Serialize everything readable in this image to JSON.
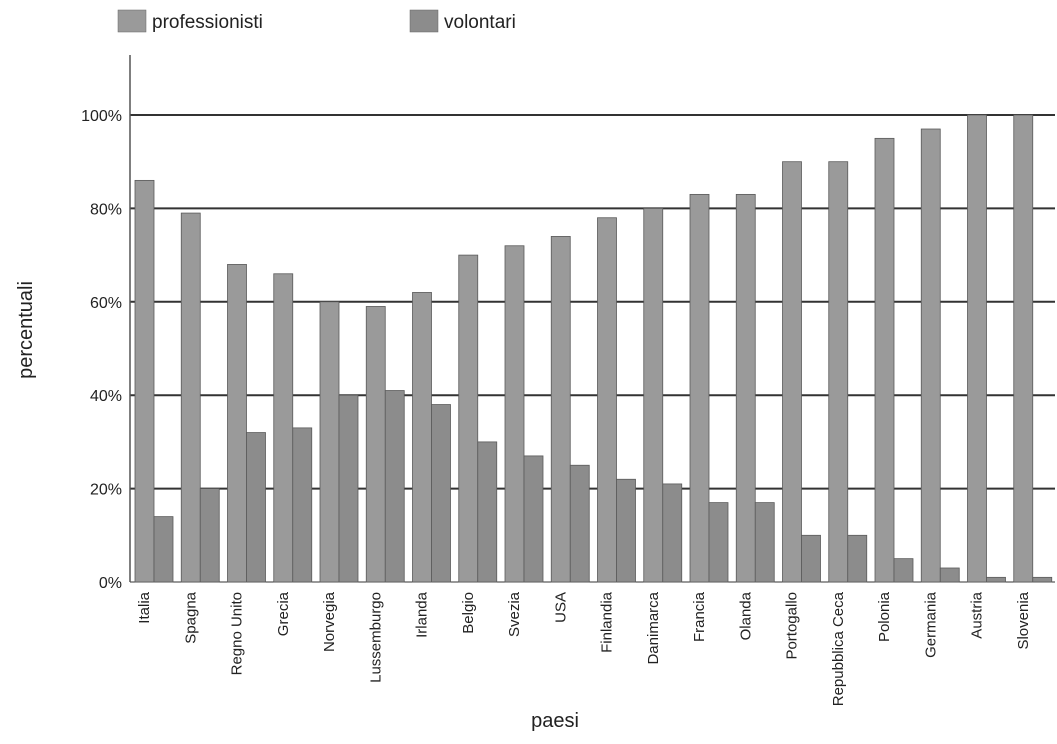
{
  "chart_data": {
    "type": "bar",
    "categories": [
      "Italia",
      "Spagna",
      "Regno Unito",
      "Grecia",
      "Norvegia",
      "Lussemburgo",
      "Irlanda",
      "Belgio",
      "Svezia",
      "USA",
      "Finlandia",
      "Danimarca",
      "Francia",
      "Olanda",
      "Portogallo",
      "Repubblica Ceca",
      "Polonia",
      "Germania",
      "Austria",
      "Slovenia"
    ],
    "series": [
      {
        "name": "professionisti",
        "values": [
          86,
          79,
          68,
          66,
          60,
          59,
          62,
          70,
          72,
          74,
          78,
          80,
          83,
          83,
          90,
          90,
          95,
          97,
          100,
          100
        ]
      },
      {
        "name": "volontari",
        "values": [
          14,
          20,
          32,
          33,
          40,
          41,
          38,
          30,
          27,
          25,
          22,
          21,
          17,
          17,
          10,
          10,
          5,
          3,
          1,
          1
        ]
      }
    ],
    "xlabel": "paesi",
    "ylabel": "percentuali",
    "ylim": [
      0,
      100
    ],
    "yticks": [
      0,
      20,
      40,
      60,
      80,
      100
    ],
    "ytick_labels": [
      "0%",
      "20%",
      "40%",
      "60%",
      "80%",
      "100%"
    ],
    "grid": true,
    "legend": "top-left",
    "colors": {
      "professionisti": "#9a9a9a",
      "volontari": "#8c8c8c",
      "grid": "#333333"
    }
  }
}
